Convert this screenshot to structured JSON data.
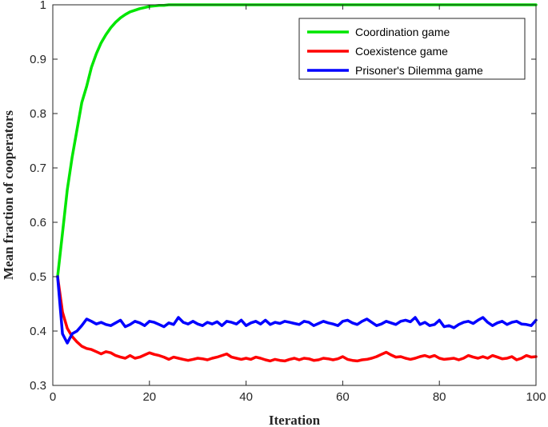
{
  "chart_data": {
    "type": "line",
    "xlabel": "Iteration",
    "ylabel": "Mean fraction of cooperators",
    "xlim": [
      0,
      100
    ],
    "ylim": [
      0.3,
      1
    ],
    "xticks": [
      "0",
      "20",
      "40",
      "60",
      "80",
      "100"
    ],
    "yticks": [
      "0.3",
      "0.4",
      "0.5",
      "0.6",
      "0.7",
      "0.8",
      "0.9",
      "1"
    ],
    "grid": false,
    "legend_position": "top-right",
    "x": [
      1,
      2,
      3,
      4,
      5,
      6,
      7,
      8,
      9,
      10,
      11,
      12,
      13,
      14,
      15,
      16,
      17,
      18,
      19,
      20,
      21,
      22,
      23,
      24,
      25,
      26,
      27,
      28,
      29,
      30,
      31,
      32,
      33,
      34,
      35,
      36,
      37,
      38,
      39,
      40,
      41,
      42,
      43,
      44,
      45,
      46,
      47,
      48,
      49,
      50,
      51,
      52,
      53,
      54,
      55,
      56,
      57,
      58,
      59,
      60,
      61,
      62,
      63,
      64,
      65,
      66,
      67,
      68,
      69,
      70,
      71,
      72,
      73,
      74,
      75,
      76,
      77,
      78,
      79,
      80,
      81,
      82,
      83,
      84,
      85,
      86,
      87,
      88,
      89,
      90,
      91,
      92,
      93,
      94,
      95,
      96,
      97,
      98,
      99,
      100
    ],
    "series": [
      {
        "name": "Coordination game",
        "color": "#00e600",
        "values": [
          0.5,
          0.58,
          0.66,
          0.72,
          0.77,
          0.82,
          0.85,
          0.885,
          0.91,
          0.93,
          0.945,
          0.958,
          0.968,
          0.976,
          0.982,
          0.987,
          0.99,
          0.993,
          0.995,
          0.997,
          0.998,
          0.999,
          0.999,
          1,
          1,
          1,
          1,
          1,
          1,
          1,
          1,
          1,
          1,
          1,
          1,
          1,
          1,
          1,
          1,
          1,
          1,
          1,
          1,
          1,
          1,
          1,
          1,
          1,
          1,
          1,
          1,
          1,
          1,
          1,
          1,
          1,
          1,
          1,
          1,
          1,
          1,
          1,
          1,
          1,
          1,
          1,
          1,
          1,
          1,
          1,
          1,
          1,
          1,
          1,
          1,
          1,
          1,
          1,
          1,
          1,
          1,
          1,
          1,
          1,
          1,
          1,
          1,
          1,
          1,
          1,
          1,
          1,
          1,
          1,
          1,
          1,
          1,
          1,
          1,
          1
        ]
      },
      {
        "name": "Coexistence game",
        "color": "#ff0000",
        "values": [
          0.5,
          0.435,
          0.405,
          0.39,
          0.38,
          0.372,
          0.368,
          0.366,
          0.362,
          0.358,
          0.362,
          0.36,
          0.355,
          0.352,
          0.35,
          0.355,
          0.35,
          0.352,
          0.356,
          0.36,
          0.357,
          0.355,
          0.352,
          0.348,
          0.352,
          0.35,
          0.348,
          0.346,
          0.348,
          0.35,
          0.349,
          0.347,
          0.35,
          0.352,
          0.355,
          0.358,
          0.352,
          0.35,
          0.348,
          0.35,
          0.348,
          0.352,
          0.35,
          0.347,
          0.345,
          0.348,
          0.346,
          0.345,
          0.348,
          0.35,
          0.347,
          0.35,
          0.349,
          0.346,
          0.347,
          0.35,
          0.349,
          0.347,
          0.349,
          0.353,
          0.348,
          0.346,
          0.345,
          0.347,
          0.348,
          0.35,
          0.353,
          0.357,
          0.361,
          0.356,
          0.352,
          0.353,
          0.35,
          0.348,
          0.35,
          0.353,
          0.355,
          0.352,
          0.355,
          0.35,
          0.348,
          0.349,
          0.35,
          0.347,
          0.35,
          0.355,
          0.352,
          0.35,
          0.353,
          0.35,
          0.355,
          0.352,
          0.349,
          0.35,
          0.353,
          0.347,
          0.35,
          0.355,
          0.352,
          0.353
        ]
      },
      {
        "name": "Prisoner's Dilemma game",
        "color": "#0000ff",
        "values": [
          0.5,
          0.395,
          0.378,
          0.395,
          0.4,
          0.41,
          0.422,
          0.418,
          0.413,
          0.416,
          0.412,
          0.41,
          0.415,
          0.42,
          0.408,
          0.412,
          0.418,
          0.415,
          0.41,
          0.418,
          0.416,
          0.412,
          0.408,
          0.415,
          0.412,
          0.425,
          0.416,
          0.413,
          0.418,
          0.413,
          0.41,
          0.416,
          0.413,
          0.417,
          0.41,
          0.418,
          0.416,
          0.413,
          0.42,
          0.41,
          0.415,
          0.418,
          0.413,
          0.42,
          0.412,
          0.416,
          0.414,
          0.418,
          0.416,
          0.414,
          0.412,
          0.418,
          0.416,
          0.41,
          0.414,
          0.418,
          0.415,
          0.413,
          0.41,
          0.418,
          0.42,
          0.415,
          0.412,
          0.418,
          0.422,
          0.416,
          0.41,
          0.413,
          0.418,
          0.415,
          0.412,
          0.418,
          0.42,
          0.417,
          0.425,
          0.412,
          0.416,
          0.41,
          0.412,
          0.42,
          0.408,
          0.41,
          0.406,
          0.412,
          0.416,
          0.418,
          0.414,
          0.42,
          0.425,
          0.416,
          0.41,
          0.415,
          0.418,
          0.412,
          0.416,
          0.418,
          0.413,
          0.412,
          0.41,
          0.42
        ]
      }
    ]
  }
}
